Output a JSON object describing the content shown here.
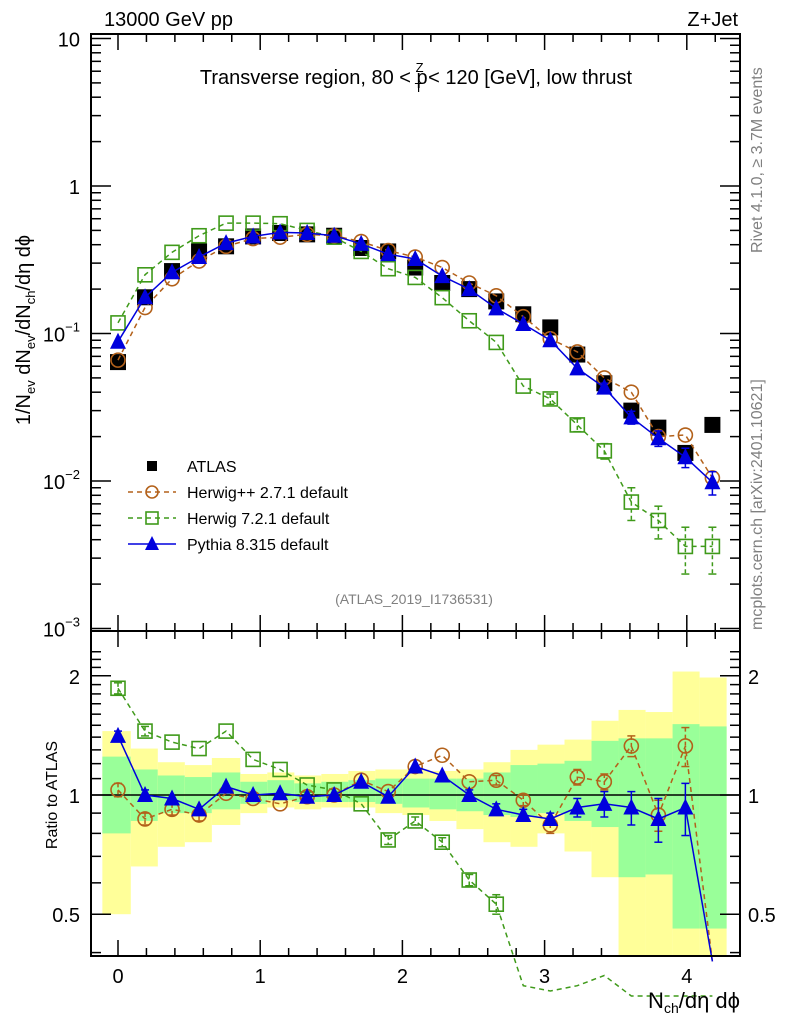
{
  "header": {
    "left": "13000 GeV pp",
    "right": "Z+Jet"
  },
  "side_labels": {
    "rivet": "Rivet 4.1.0, ≥ 3.7M events",
    "mcplots": "mcplots.cern.ch [arXiv:2401.10621]"
  },
  "chart_data": [
    {
      "type": "line",
      "panel": "main",
      "title": "Transverse region, 80 < p_T^Z < 120 [GeV], low thrust",
      "title_parts": {
        "pre": "Transverse region, 80 < p",
        "sup": "Z",
        "sub": "T",
        "post": " < 120 [GeV], low thrust"
      },
      "xlabel": "N_ch/dη dϕ",
      "ylabel": "1/N_ev dN_ev/dN_ch/dη dϕ",
      "ylabel_parts": {
        "a": "1/N",
        "a_sub": "ev",
        "b": " dN",
        "b_sub": "ev",
        "c": "/dN",
        "c_sub": "ch",
        "d": "/dη dϕ"
      },
      "yscale": "log",
      "xlim": [
        -0.19,
        4.4
      ],
      "ylim": [
        0.001,
        10
      ],
      "yticks": [
        {
          "value": 10,
          "label": "10"
        },
        {
          "value": 1,
          "label": "1"
        },
        {
          "value": 0.1,
          "base": "10",
          "exp": "−1"
        },
        {
          "value": 0.01,
          "base": "10",
          "exp": "−2"
        },
        {
          "value": 0.001,
          "base": "10",
          "exp": "−3"
        }
      ],
      "watermark": "(ATLAS_2019_I1736531)",
      "legend_position": "lower-left",
      "x": [
        0.0,
        0.19,
        0.38,
        0.57,
        0.76,
        0.95,
        1.14,
        1.33,
        1.52,
        1.71,
        1.9,
        2.09,
        2.28,
        2.47,
        2.66,
        2.85,
        3.04,
        3.23,
        3.42,
        3.61,
        3.8,
        3.99,
        4.18
      ],
      "series": [
        {
          "name": "ATLAS",
          "marker": "square",
          "color": "#000000",
          "line": "none",
          "values": [
            0.064,
            0.176,
            0.265,
            0.36,
            0.39,
            0.455,
            0.48,
            0.47,
            0.46,
            0.38,
            0.36,
            0.28,
            0.22,
            0.2,
            0.165,
            0.135,
            0.11,
            0.072,
            0.046,
            0.03,
            0.023,
            0.0155,
            0.024
          ]
        },
        {
          "name": "Herwig++ 2.7.1 default",
          "marker": "open-circle",
          "color": "#b3611a",
          "line": "dashed",
          "values": [
            0.066,
            0.15,
            0.235,
            0.31,
            0.39,
            0.44,
            0.45,
            0.47,
            0.46,
            0.42,
            0.365,
            0.33,
            0.28,
            0.22,
            0.18,
            0.13,
            0.092,
            0.075,
            0.05,
            0.04,
            0.02,
            0.0205,
            0.0105
          ]
        },
        {
          "name": "Herwig 7.2.1 default",
          "marker": "open-square",
          "color": "#3f9a1a",
          "line": "dashed",
          "values": [
            0.118,
            0.25,
            0.355,
            0.46,
            0.56,
            0.56,
            0.555,
            0.5,
            0.45,
            0.36,
            0.275,
            0.24,
            0.175,
            0.122,
            0.087,
            0.044,
            0.036,
            0.024,
            0.016,
            0.0072,
            0.0054,
            0.0036,
            0.0036
          ],
          "errors_rel": [
            0.02,
            0.02,
            0.02,
            0.02,
            0.02,
            0.02,
            0.02,
            0.02,
            0.02,
            0.02,
            0.02,
            0.02,
            0.02,
            0.03,
            0.04,
            0.06,
            0.08,
            0.1,
            0.12,
            0.25,
            0.25,
            0.35,
            0.35
          ]
        },
        {
          "name": "Pythia 8.315 default",
          "marker": "filled-triangle",
          "color": "#0000dd",
          "line": "solid",
          "values": [
            0.088,
            0.176,
            0.26,
            0.33,
            0.41,
            0.455,
            0.485,
            0.48,
            0.46,
            0.405,
            0.345,
            0.32,
            0.245,
            0.2,
            0.148,
            0.116,
            0.09,
            0.058,
            0.043,
            0.027,
            0.0195,
            0.0145,
            0.0098
          ],
          "errors_rel": [
            0.01,
            0.01,
            0.01,
            0.01,
            0.01,
            0.01,
            0.01,
            0.01,
            0.01,
            0.01,
            0.01,
            0.01,
            0.01,
            0.02,
            0.02,
            0.03,
            0.03,
            0.05,
            0.07,
            0.1,
            0.12,
            0.15,
            0.18
          ]
        }
      ]
    },
    {
      "type": "line",
      "panel": "ratio",
      "xlabel": "N_ch/dη dϕ",
      "xlabel_parts": {
        "a": "N",
        "a_sub": "ch",
        "b": "/dη dϕ"
      },
      "ylabel": "Ratio to ATLAS",
      "yscale": "log",
      "xlim": [
        -0.19,
        4.4
      ],
      "ylim": [
        0.4,
        2.3
      ],
      "yticks": [
        {
          "value": 2,
          "label": "2"
        },
        {
          "value": 1,
          "label": "1"
        },
        {
          "value": 0.5,
          "label": "0.5"
        }
      ],
      "xticks": [
        {
          "value": 0,
          "label": "0"
        },
        {
          "value": 1,
          "label": "1"
        },
        {
          "value": 2,
          "label": "2"
        },
        {
          "value": 3,
          "label": "3"
        },
        {
          "value": 4,
          "label": "4"
        }
      ],
      "bin_edges": [
        -0.11,
        0.09,
        0.28,
        0.47,
        0.66,
        0.86,
        1.05,
        1.24,
        1.43,
        1.62,
        1.81,
        2.0,
        2.19,
        2.38,
        2.57,
        2.76,
        2.95,
        3.14,
        3.33,
        3.52,
        3.71,
        3.9,
        4.09,
        4.28
      ],
      "bands": {
        "yellow_color": "#ffff99",
        "green_color": "#99ff99",
        "yellow_low": [
          0.5,
          0.66,
          0.74,
          0.76,
          0.84,
          0.9,
          0.93,
          0.92,
          0.93,
          0.93,
          0.9,
          0.89,
          0.86,
          0.82,
          0.76,
          0.74,
          0.8,
          0.72,
          0.62,
          0.37,
          0.37,
          0.37,
          0.37
        ],
        "yellow_high": [
          1.45,
          1.31,
          1.21,
          1.19,
          1.24,
          1.13,
          1.14,
          1.12,
          1.13,
          1.15,
          1.16,
          1.16,
          1.15,
          1.16,
          1.21,
          1.3,
          1.34,
          1.38,
          1.54,
          1.64,
          1.62,
          2.05,
          1.98
        ],
        "green_low": [
          0.8,
          0.86,
          0.9,
          0.9,
          0.92,
          0.95,
          0.97,
          0.96,
          0.96,
          0.96,
          0.95,
          0.93,
          0.92,
          0.91,
          0.89,
          0.88,
          0.9,
          0.86,
          0.83,
          0.62,
          0.63,
          0.46,
          0.46
        ],
        "green_high": [
          1.25,
          1.16,
          1.12,
          1.11,
          1.14,
          1.08,
          1.09,
          1.07,
          1.08,
          1.09,
          1.1,
          1.1,
          1.1,
          1.1,
          1.14,
          1.19,
          1.2,
          1.22,
          1.37,
          1.39,
          1.39,
          1.51,
          1.49
        ]
      },
      "series": [
        {
          "name": "Herwig++ 2.7.1 default",
          "marker": "open-circle",
          "color": "#b3611a",
          "line": "dashed",
          "values": [
            1.03,
            0.87,
            0.92,
            0.89,
            1.01,
            0.98,
            0.95,
            0.99,
            1.0,
            1.09,
            1.02,
            1.18,
            1.26,
            1.08,
            1.09,
            0.97,
            0.84,
            1.11,
            1.08,
            1.33,
            0.89,
            1.33,
            0.38
          ],
          "errors": [
            0.04,
            0.03,
            0.03,
            0.03,
            0.02,
            0.02,
            0.02,
            0.02,
            0.02,
            0.02,
            0.02,
            0.02,
            0.02,
            0.02,
            0.03,
            0.03,
            0.04,
            0.05,
            0.05,
            0.08,
            0.08,
            0.15,
            0.05
          ]
        },
        {
          "name": "Herwig 7.2.1 default",
          "marker": "open-square",
          "color": "#3f9a1a",
          "line": "dashed",
          "values": [
            1.86,
            1.45,
            1.36,
            1.31,
            1.45,
            1.23,
            1.16,
            1.06,
            1.03,
            0.95,
            0.77,
            0.86,
            0.76,
            0.61,
            0.53,
            0.33,
            0.32,
            0.33,
            0.35,
            0.24,
            0.23,
            0.23,
            0.15
          ],
          "errors": [
            0.06,
            0.04,
            0.03,
            0.03,
            0.03,
            0.02,
            0.02,
            0.02,
            0.02,
            0.02,
            0.02,
            0.02,
            0.02,
            0.02,
            0.03,
            0.03,
            0.03,
            0.03,
            0.03,
            0.03,
            0.03,
            0.03,
            0.03
          ]
        },
        {
          "name": "Pythia 8.315 default",
          "marker": "filled-triangle",
          "color": "#0000dd",
          "line": "solid",
          "values": [
            1.41,
            1.0,
            0.98,
            0.92,
            1.05,
            1.0,
            1.01,
            0.99,
            1.0,
            1.08,
            0.99,
            1.18,
            1.12,
            1.0,
            0.92,
            0.89,
            0.87,
            0.93,
            0.95,
            0.93,
            0.87,
            0.93,
            0.38
          ],
          "errors": [
            0.04,
            0.03,
            0.02,
            0.02,
            0.02,
            0.02,
            0.02,
            0.02,
            0.02,
            0.02,
            0.02,
            0.02,
            0.02,
            0.03,
            0.03,
            0.03,
            0.03,
            0.05,
            0.07,
            0.09,
            0.11,
            0.14,
            0.06
          ]
        }
      ],
      "reference_line": 1.0
    }
  ]
}
